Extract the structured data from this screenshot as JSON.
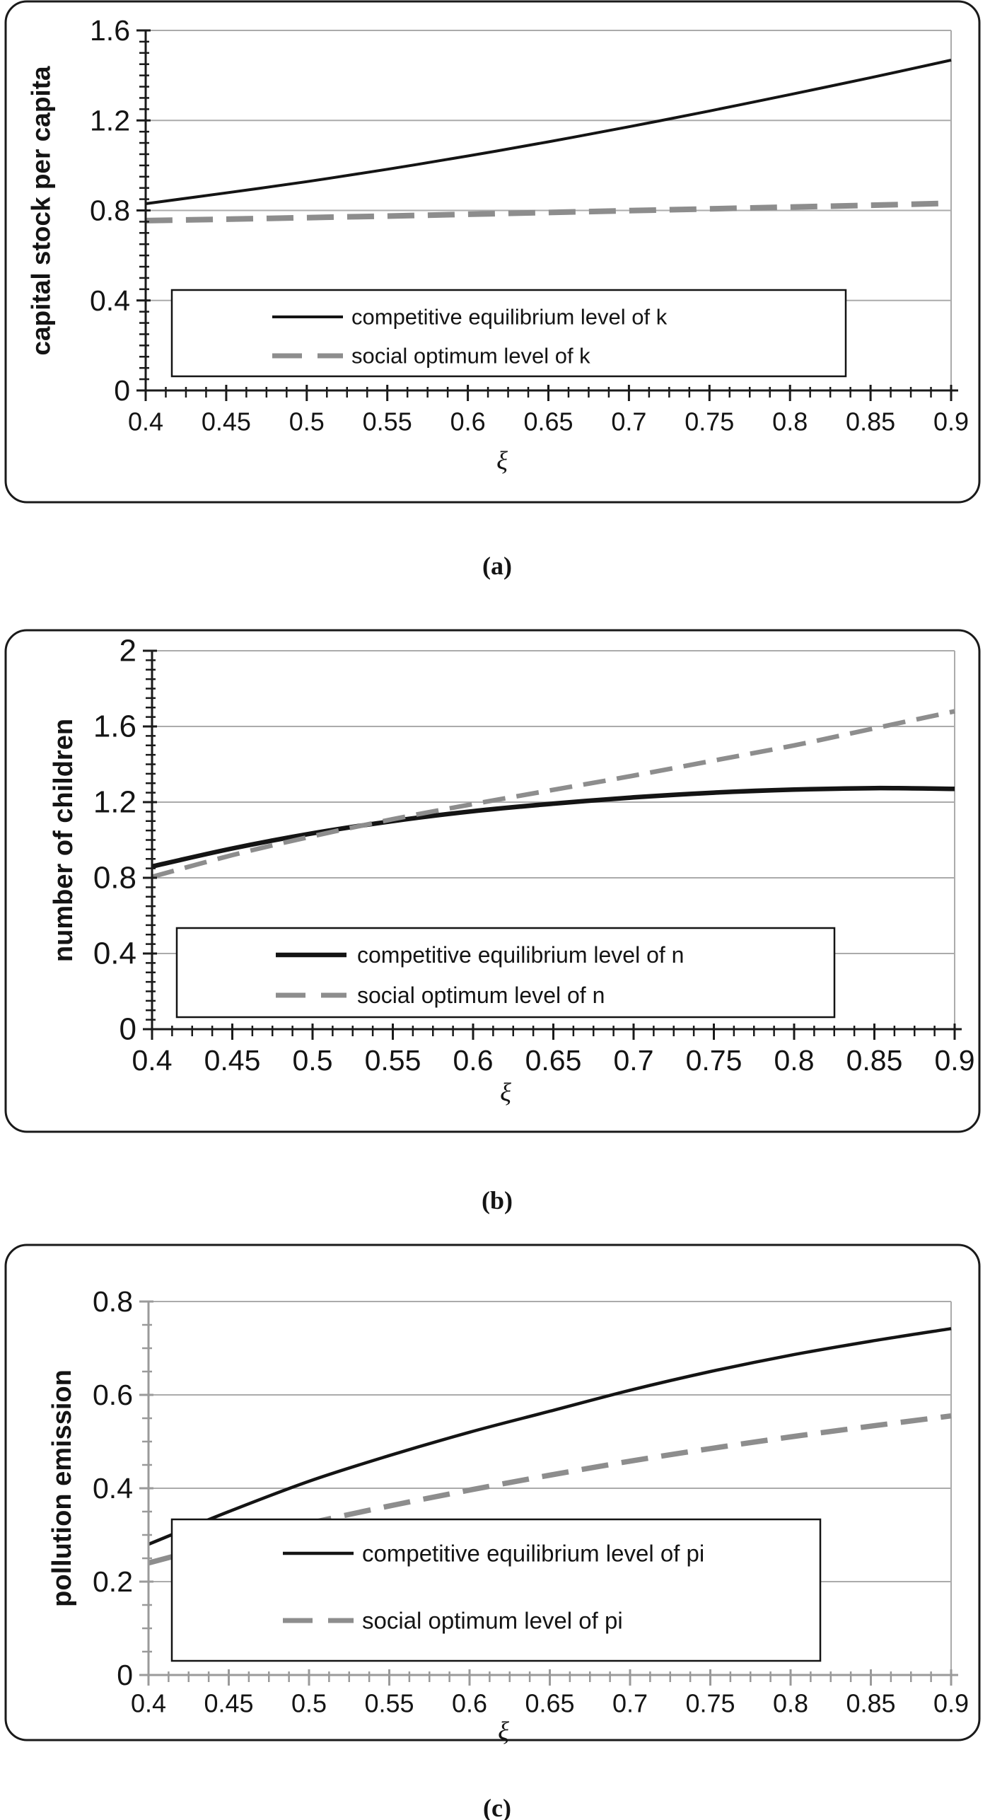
{
  "figure": {
    "captions": [
      "(a)",
      "(b)",
      "(c)"
    ]
  },
  "colors": {
    "background": "#ffffff",
    "grid": "#ababab",
    "axis_dark": "#1a1a1a",
    "axis_gray": "#9a9a9a",
    "series_solid": "#141414",
    "series_dashed": "#8d8d8d",
    "legend_border": "#141414",
    "text": "#141414"
  },
  "chart_data": [
    {
      "id": "a",
      "type": "line",
      "title": "",
      "ylabel": "capital stock per capita",
      "xlabel": "ξ",
      "xlim": [
        0.4,
        0.9
      ],
      "ylim": [
        0,
        1.6
      ],
      "grid": "horizontal-major",
      "legend_position": "inside-bottom-left",
      "x_tick_labels": [
        "0.4",
        "0.45",
        "0.5",
        "0.55",
        "0.6",
        "0.65",
        "0.7",
        "0.75",
        "0.8",
        "0.85",
        "0.9"
      ],
      "x_ticks": [
        0.4,
        0.45,
        0.5,
        0.55,
        0.6,
        0.65,
        0.7,
        0.75,
        0.8,
        0.85,
        0.9
      ],
      "x_minor_step": 0.0125,
      "y_tick_labels": [
        "0",
        "0.4",
        "0.8",
        "1.2",
        "1.6"
      ],
      "y_ticks": [
        0,
        0.4,
        0.8,
        1.2,
        1.6
      ],
      "y_minor_step": 0.05,
      "x": [
        0.4,
        0.45,
        0.5,
        0.55,
        0.6,
        0.65,
        0.7,
        0.75,
        0.8,
        0.85,
        0.9
      ],
      "series": [
        {
          "name": "competitive equilibrium level of k",
          "style": "solid",
          "color": "#141414",
          "values": [
            0.83,
            0.878,
            0.928,
            0.983,
            1.042,
            1.105,
            1.172,
            1.242,
            1.315,
            1.39,
            1.468
          ]
        },
        {
          "name": "social optimum level of k",
          "style": "dashed",
          "color": "#8d8d8d",
          "values": [
            0.755,
            0.761,
            0.768,
            0.775,
            0.783,
            0.791,
            0.799,
            0.807,
            0.815,
            0.823,
            0.832
          ]
        }
      ]
    },
    {
      "id": "b",
      "type": "line",
      "title": "",
      "ylabel": "number of children",
      "xlabel": "ξ",
      "xlim": [
        0.4,
        0.9
      ],
      "ylim": [
        0,
        2
      ],
      "grid": "horizontal-major",
      "legend_position": "inside-bottom-left",
      "x_tick_labels": [
        "0.4",
        "0.45",
        "0.5",
        "0.55",
        "0.6",
        "0.65",
        "0.7",
        "0.75",
        "0.8",
        "0.85",
        "0.9"
      ],
      "x_ticks": [
        0.4,
        0.45,
        0.5,
        0.55,
        0.6,
        0.65,
        0.7,
        0.75,
        0.8,
        0.85,
        0.9
      ],
      "x_minor_step": 0.0125,
      "y_tick_labels": [
        "0",
        "0.4",
        "0.8",
        "1.2",
        "1.6",
        "2"
      ],
      "y_ticks": [
        0,
        0.4,
        0.8,
        1.2,
        1.6,
        2
      ],
      "y_minor_step": 0.05,
      "x": [
        0.4,
        0.45,
        0.5,
        0.55,
        0.6,
        0.65,
        0.7,
        0.75,
        0.8,
        0.85,
        0.9
      ],
      "series": [
        {
          "name": "competitive equilibrium level of n",
          "style": "solid",
          "color": "#141414",
          "values": [
            0.86,
            0.955,
            1.035,
            1.1,
            1.152,
            1.192,
            1.225,
            1.25,
            1.266,
            1.274,
            1.27
          ]
        },
        {
          "name": "social optimum level of n",
          "style": "dashed",
          "color": "#8d8d8d",
          "values": [
            0.805,
            0.92,
            1.02,
            1.11,
            1.19,
            1.265,
            1.34,
            1.42,
            1.5,
            1.59,
            1.68
          ]
        }
      ]
    },
    {
      "id": "c",
      "type": "line",
      "title": "",
      "ylabel": "pollution emission",
      "xlabel": "ξ",
      "xlim": [
        0.4,
        0.9
      ],
      "ylim": [
        0,
        0.8
      ],
      "grid": "horizontal-major",
      "legend_position": "inside-bottom-left",
      "x_tick_labels": [
        "0.4",
        "0.45",
        "0.5",
        "0.55",
        "0.6",
        "0.65",
        "0.7",
        "0.75",
        "0.8",
        "0.85",
        "0.9"
      ],
      "x_ticks": [
        0.4,
        0.45,
        0.5,
        0.55,
        0.6,
        0.65,
        0.7,
        0.75,
        0.8,
        0.85,
        0.9
      ],
      "x_minor_step": 0.0125,
      "y_tick_labels": [
        "0",
        "0.2",
        "0.4",
        "0.6",
        "0.8"
      ],
      "y_ticks": [
        0,
        0.2,
        0.4,
        0.6,
        0.8
      ],
      "y_minor_step": 0.05,
      "x": [
        0.4,
        0.45,
        0.5,
        0.55,
        0.6,
        0.65,
        0.7,
        0.75,
        0.8,
        0.85,
        0.9
      ],
      "series": [
        {
          "name": "competitive equilibrium level of pi",
          "style": "solid",
          "color": "#141414",
          "values": [
            0.28,
            0.35,
            0.415,
            0.47,
            0.52,
            0.565,
            0.61,
            0.65,
            0.685,
            0.715,
            0.742
          ]
        },
        {
          "name": "social optimum level of pi",
          "style": "dashed",
          "color": "#8d8d8d",
          "values": [
            0.24,
            0.285,
            0.325,
            0.362,
            0.396,
            0.428,
            0.458,
            0.485,
            0.51,
            0.533,
            0.555
          ]
        }
      ]
    }
  ]
}
